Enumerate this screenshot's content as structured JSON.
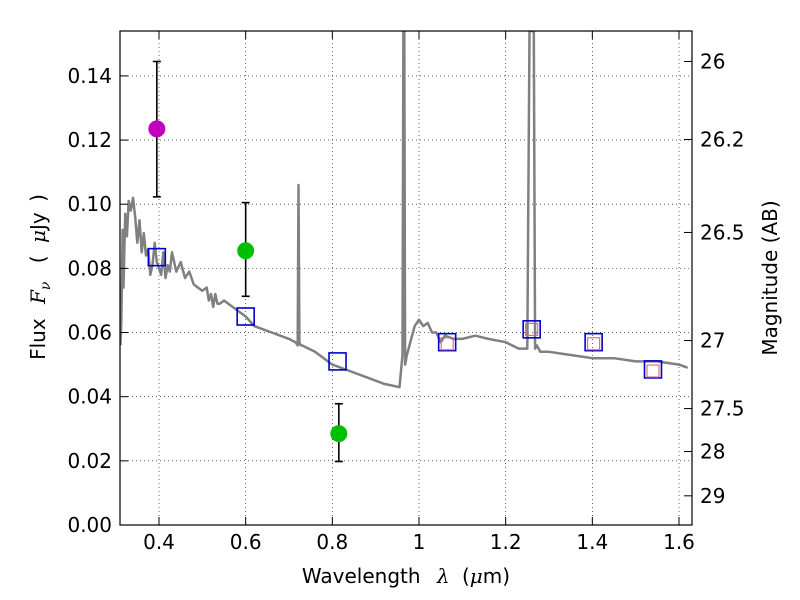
{
  "chart_data": {
    "type": "scatter",
    "title": "",
    "xlabel_prefix": "Wavelength",
    "xlabel_symbol": "λ",
    "xlabel_unit_open": "(",
    "xlabel_unit_mu": "μ",
    "xlabel_unit_rest": "m)",
    "ylabel_prefix": "Flux",
    "ylabel_symbol": "F",
    "ylabel_subscript": "ν",
    "ylabel_unit_open": "(",
    "ylabel_unit_mu": "μ",
    "ylabel_unit_rest": "Jy",
    "ylabel_unit_close": ")",
    "y2label": "Magnitude (AB)",
    "xlim": [
      0.31,
      1.63
    ],
    "ylim": [
      0.0,
      0.154
    ],
    "grid": true,
    "x_ticks": [
      0.4,
      0.6,
      0.8,
      1.0,
      1.2,
      1.4,
      1.6
    ],
    "x_tick_labels": [
      "0.4",
      "0.6",
      "0.8",
      "1",
      "1.2",
      "1.4",
      "1.6"
    ],
    "y_ticks": [
      0.0,
      0.02,
      0.04,
      0.06,
      0.08,
      0.1,
      0.12,
      0.14
    ],
    "y_tick_labels": [
      "0.00",
      "0.02",
      "0.04",
      "0.06",
      "0.08",
      "0.10",
      "0.12",
      "0.14"
    ],
    "y2_ticks": [
      {
        "label": "26",
        "flux": 0.1445
      },
      {
        "label": "26.2",
        "flux": 0.1202
      },
      {
        "label": "26.5",
        "flux": 0.0912
      },
      {
        "label": "27",
        "flux": 0.0575
      },
      {
        "label": "27.5",
        "flux": 0.0363
      },
      {
        "label": "28",
        "flux": 0.0229
      },
      {
        "label": "29",
        "flux": 0.0091
      }
    ],
    "series": [
      {
        "name": "model-spectrum",
        "kind": "line",
        "color": "#808080",
        "x": [
          0.311,
          0.313,
          0.316,
          0.318,
          0.322,
          0.326,
          0.33,
          0.335,
          0.34,
          0.345,
          0.35,
          0.355,
          0.36,
          0.365,
          0.37,
          0.375,
          0.38,
          0.385,
          0.39,
          0.395,
          0.4,
          0.405,
          0.41,
          0.415,
          0.42,
          0.425,
          0.43,
          0.44,
          0.45,
          0.46,
          0.47,
          0.48,
          0.49,
          0.5,
          0.51,
          0.515,
          0.52,
          0.525,
          0.53,
          0.535,
          0.54,
          0.55,
          0.56,
          0.58,
          0.6,
          0.62,
          0.64,
          0.66,
          0.68,
          0.7,
          0.715,
          0.72,
          0.722,
          0.724,
          0.727,
          0.73,
          0.76,
          0.8,
          0.84,
          0.88,
          0.92,
          0.955,
          0.962,
          0.964,
          0.966,
          0.968,
          0.972,
          0.98,
          0.99,
          1.0,
          1.01,
          1.02,
          1.03,
          1.04,
          1.05,
          1.06,
          1.08,
          1.1,
          1.13,
          1.16,
          1.2,
          1.23,
          1.25,
          1.255,
          1.26,
          1.262,
          1.265,
          1.268,
          1.272,
          1.28,
          1.3,
          1.35,
          1.4,
          1.45,
          1.5,
          1.55,
          1.6,
          1.62
        ],
        "y": [
          0.056,
          0.063,
          0.092,
          0.074,
          0.097,
          0.09,
          0.101,
          0.098,
          0.102,
          0.096,
          0.088,
          0.095,
          0.085,
          0.091,
          0.084,
          0.086,
          0.078,
          0.081,
          0.088,
          0.082,
          0.08,
          0.078,
          0.085,
          0.077,
          0.081,
          0.079,
          0.085,
          0.079,
          0.082,
          0.077,
          0.079,
          0.075,
          0.074,
          0.073,
          0.074,
          0.07,
          0.072,
          0.068,
          0.072,
          0.069,
          0.069,
          0.07,
          0.069,
          0.067,
          0.065,
          0.062,
          0.061,
          0.06,
          0.059,
          0.058,
          0.057,
          0.056,
          0.106,
          0.057,
          0.056,
          0.056,
          0.054,
          0.05,
          0.048,
          0.046,
          0.044,
          0.043,
          0.053,
          0.154,
          0.154,
          0.05,
          0.053,
          0.057,
          0.062,
          0.064,
          0.062,
          0.063,
          0.06,
          0.06,
          0.057,
          0.059,
          0.058,
          0.058,
          0.059,
          0.058,
          0.057,
          0.055,
          0.055,
          0.154,
          0.154,
          0.154,
          0.154,
          0.055,
          0.056,
          0.054,
          0.054,
          0.053,
          0.052,
          0.052,
          0.051,
          0.051,
          0.05,
          0.049
        ]
      },
      {
        "name": "model-photometry",
        "kind": "open-square",
        "color": "#0000cc",
        "x": [
          0.395,
          0.6,
          0.812,
          1.065,
          1.26,
          1.403,
          1.54
        ],
        "y": [
          0.0835,
          0.065,
          0.051,
          0.057,
          0.061,
          0.057,
          0.0485
        ]
      },
      {
        "name": "observed-photometry-small-squares",
        "kind": "small-square",
        "color": "#e0607a",
        "x": [
          1.065,
          1.26,
          1.403,
          1.54
        ],
        "y": [
          0.0565,
          0.061,
          0.0565,
          0.048
        ]
      },
      {
        "name": "observed-photometry",
        "kind": "filled-circle-errorbar",
        "points": [
          {
            "x": 0.395,
            "y": 0.1235,
            "err_low": 0.1023,
            "err_high": 0.1445,
            "color": "#bf00bf"
          },
          {
            "x": 0.6,
            "y": 0.0855,
            "err_low": 0.0713,
            "err_high": 0.1005,
            "color": "#00bf00"
          },
          {
            "x": 0.815,
            "y": 0.0285,
            "err_low": 0.0198,
            "err_high": 0.0378,
            "color": "#00bf00"
          }
        ]
      }
    ]
  }
}
